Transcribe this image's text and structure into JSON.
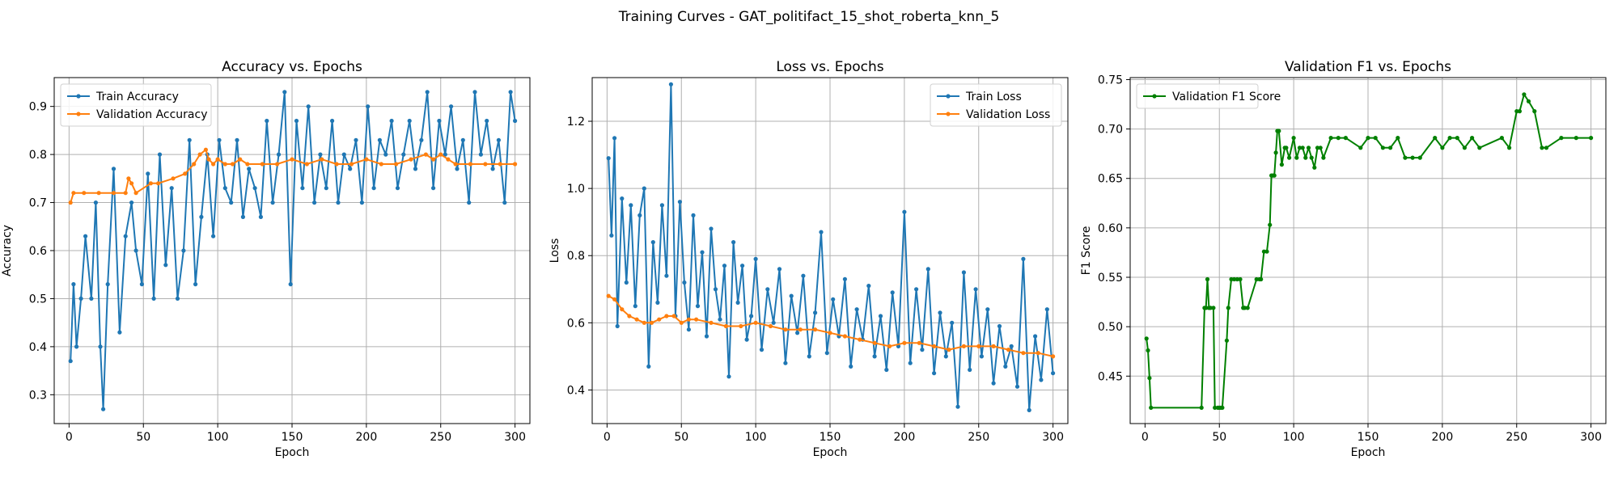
{
  "figure_title": "Training Curves - GAT_politifact_15_shot_roberta_knn_5",
  "chart_data": [
    {
      "type": "line",
      "title": "Accuracy vs. Epochs",
      "xlabel": "Epoch",
      "ylabel": "Accuracy",
      "xlim": [
        -10,
        310
      ],
      "ylim": [
        0.24,
        0.96
      ],
      "xticks": [
        0,
        50,
        100,
        150,
        200,
        250,
        300
      ],
      "yticks": [
        0.3,
        0.4,
        0.5,
        0.6,
        0.7,
        0.8,
        0.9
      ],
      "grid": true,
      "legend_position": "upper-left",
      "series": [
        {
          "name": "Train Accuracy",
          "color": "#1f77b4",
          "x": [
            1,
            3,
            5,
            8,
            11,
            15,
            18,
            21,
            23,
            26,
            30,
            34,
            38,
            42,
            45,
            49,
            53,
            57,
            61,
            65,
            69,
            73,
            77,
            81,
            85,
            89,
            93,
            97,
            101,
            105,
            109,
            113,
            117,
            121,
            125,
            129,
            133,
            137,
            141,
            145,
            149,
            153,
            157,
            161,
            165,
            169,
            173,
            177,
            181,
            185,
            189,
            193,
            197,
            201,
            205,
            209,
            213,
            217,
            221,
            225,
            229,
            233,
            237,
            241,
            245,
            249,
            253,
            257,
            261,
            265,
            269,
            273,
            277,
            281,
            285,
            289,
            293,
            297,
            300
          ],
          "y": [
            0.37,
            0.53,
            0.4,
            0.5,
            0.63,
            0.5,
            0.7,
            0.4,
            0.27,
            0.53,
            0.77,
            0.43,
            0.63,
            0.7,
            0.6,
            0.53,
            0.76,
            0.5,
            0.8,
            0.57,
            0.73,
            0.5,
            0.6,
            0.83,
            0.53,
            0.67,
            0.8,
            0.63,
            0.83,
            0.73,
            0.7,
            0.83,
            0.67,
            0.77,
            0.73,
            0.67,
            0.87,
            0.7,
            0.8,
            0.93,
            0.53,
            0.87,
            0.73,
            0.9,
            0.7,
            0.8,
            0.73,
            0.87,
            0.7,
            0.8,
            0.77,
            0.83,
            0.7,
            0.9,
            0.73,
            0.83,
            0.8,
            0.87,
            0.73,
            0.8,
            0.87,
            0.77,
            0.83,
            0.93,
            0.73,
            0.87,
            0.8,
            0.9,
            0.77,
            0.83,
            0.7,
            0.93,
            0.8,
            0.87,
            0.77,
            0.83,
            0.7,
            0.93,
            0.87
          ]
        },
        {
          "name": "Validation Accuracy",
          "color": "#ff7f0e",
          "x": [
            1,
            3,
            10,
            20,
            30,
            38,
            40,
            42,
            45,
            55,
            60,
            70,
            78,
            84,
            88,
            92,
            94,
            97,
            100,
            105,
            110,
            115,
            120,
            130,
            140,
            150,
            160,
            170,
            180,
            190,
            200,
            210,
            220,
            230,
            240,
            245,
            250,
            255,
            260,
            270,
            280,
            290,
            300
          ],
          "y": [
            0.7,
            0.72,
            0.72,
            0.72,
            0.72,
            0.72,
            0.75,
            0.74,
            0.72,
            0.74,
            0.74,
            0.75,
            0.76,
            0.78,
            0.8,
            0.81,
            0.79,
            0.78,
            0.79,
            0.78,
            0.78,
            0.79,
            0.78,
            0.78,
            0.78,
            0.79,
            0.78,
            0.79,
            0.78,
            0.78,
            0.79,
            0.78,
            0.78,
            0.79,
            0.8,
            0.79,
            0.8,
            0.79,
            0.78,
            0.78,
            0.78,
            0.78,
            0.78
          ]
        }
      ]
    },
    {
      "type": "line",
      "title": "Loss vs. Epochs",
      "xlabel": "Epoch",
      "ylabel": "Loss",
      "xlim": [
        -10,
        310
      ],
      "ylim": [
        0.3,
        1.33
      ],
      "xticks": [
        0,
        50,
        100,
        150,
        200,
        250,
        300
      ],
      "yticks": [
        0.4,
        0.6,
        0.8,
        1.0,
        1.2
      ],
      "grid": true,
      "legend_position": "upper-right",
      "series": [
        {
          "name": "Train Loss",
          "color": "#1f77b4",
          "x": [
            1,
            3,
            5,
            7,
            10,
            13,
            16,
            19,
            22,
            25,
            28,
            31,
            34,
            37,
            40,
            43,
            46,
            49,
            52,
            55,
            58,
            61,
            64,
            67,
            70,
            73,
            76,
            79,
            82,
            85,
            88,
            91,
            94,
            97,
            100,
            104,
            108,
            112,
            116,
            120,
            124,
            128,
            132,
            136,
            140,
            144,
            148,
            152,
            156,
            160,
            164,
            168,
            172,
            176,
            180,
            184,
            188,
            192,
            196,
            200,
            204,
            208,
            212,
            216,
            220,
            224,
            228,
            232,
            236,
            240,
            244,
            248,
            252,
            256,
            260,
            264,
            268,
            272,
            276,
            280,
            284,
            288,
            292,
            296,
            300
          ],
          "y": [
            1.09,
            0.86,
            1.15,
            0.59,
            0.97,
            0.72,
            0.95,
            0.65,
            0.92,
            1.0,
            0.47,
            0.84,
            0.66,
            0.95,
            0.74,
            1.31,
            0.62,
            0.96,
            0.72,
            0.58,
            0.92,
            0.65,
            0.81,
            0.56,
            0.88,
            0.7,
            0.61,
            0.77,
            0.44,
            0.84,
            0.66,
            0.77,
            0.55,
            0.62,
            0.79,
            0.52,
            0.7,
            0.6,
            0.76,
            0.48,
            0.68,
            0.57,
            0.74,
            0.5,
            0.63,
            0.87,
            0.51,
            0.67,
            0.56,
            0.73,
            0.47,
            0.64,
            0.55,
            0.71,
            0.5,
            0.62,
            0.46,
            0.69,
            0.53,
            0.93,
            0.48,
            0.7,
            0.52,
            0.76,
            0.45,
            0.63,
            0.5,
            0.6,
            0.35,
            0.75,
            0.46,
            0.7,
            0.5,
            0.64,
            0.42,
            0.59,
            0.47,
            0.53,
            0.41,
            0.79,
            0.34,
            0.56,
            0.43,
            0.64,
            0.45
          ]
        },
        {
          "name": "Validation Loss",
          "color": "#ff7f0e",
          "x": [
            1,
            5,
            10,
            15,
            20,
            25,
            30,
            35,
            40,
            45,
            50,
            55,
            60,
            70,
            80,
            90,
            100,
            110,
            120,
            130,
            140,
            150,
            160,
            170,
            180,
            190,
            200,
            210,
            220,
            230,
            240,
            250,
            260,
            270,
            280,
            290,
            300
          ],
          "y": [
            0.68,
            0.67,
            0.64,
            0.62,
            0.61,
            0.6,
            0.6,
            0.61,
            0.62,
            0.62,
            0.6,
            0.61,
            0.61,
            0.6,
            0.59,
            0.59,
            0.6,
            0.59,
            0.58,
            0.58,
            0.58,
            0.57,
            0.56,
            0.55,
            0.54,
            0.53,
            0.54,
            0.54,
            0.53,
            0.52,
            0.53,
            0.53,
            0.53,
            0.52,
            0.51,
            0.51,
            0.5
          ]
        }
      ]
    },
    {
      "type": "line",
      "title": "Validation F1 vs. Epochs",
      "xlabel": "Epoch",
      "ylabel": "F1 Score",
      "xlim": [
        -10,
        310
      ],
      "ylim": [
        0.402,
        0.752
      ],
      "xticks": [
        0,
        50,
        100,
        150,
        200,
        250,
        300
      ],
      "yticks": [
        0.45,
        0.5,
        0.55,
        0.6,
        0.65,
        0.7,
        0.75
      ],
      "grid": true,
      "legend_position": "upper-left",
      "series": [
        {
          "name": "Validation F1 Score",
          "color": "#008000",
          "x": [
            1,
            2,
            3,
            4,
            38,
            40,
            41,
            42,
            43,
            44,
            46,
            47,
            49,
            50,
            51,
            52,
            55,
            56,
            58,
            60,
            62,
            64,
            66,
            67,
            69,
            75,
            77,
            78,
            80,
            82,
            84,
            85,
            86,
            87,
            88,
            89,
            90,
            92,
            94,
            95,
            97,
            100,
            102,
            104,
            106,
            108,
            110,
            112,
            114,
            116,
            118,
            120,
            125,
            130,
            135,
            145,
            150,
            155,
            160,
            165,
            170,
            175,
            180,
            185,
            195,
            200,
            205,
            210,
            215,
            220,
            225,
            240,
            245,
            250,
            252,
            255,
            258,
            262,
            267,
            270,
            280,
            290,
            300
          ],
          "y": [
            0.488,
            0.476,
            0.448,
            0.418,
            0.418,
            0.519,
            0.519,
            0.548,
            0.519,
            0.519,
            0.519,
            0.418,
            0.418,
            0.418,
            0.418,
            0.418,
            0.486,
            0.519,
            0.548,
            0.548,
            0.548,
            0.548,
            0.519,
            0.519,
            0.519,
            0.548,
            0.548,
            0.548,
            0.576,
            0.576,
            0.603,
            0.653,
            0.653,
            0.653,
            0.676,
            0.698,
            0.698,
            0.664,
            0.681,
            0.681,
            0.671,
            0.691,
            0.671,
            0.681,
            0.681,
            0.671,
            0.681,
            0.671,
            0.661,
            0.681,
            0.681,
            0.671,
            0.691,
            0.691,
            0.691,
            0.681,
            0.691,
            0.691,
            0.681,
            0.681,
            0.691,
            0.671,
            0.671,
            0.671,
            0.691,
            0.681,
            0.691,
            0.691,
            0.681,
            0.691,
            0.681,
            0.691,
            0.681,
            0.718,
            0.718,
            0.735,
            0.728,
            0.718,
            0.681,
            0.681,
            0.691,
            0.691,
            0.691
          ]
        }
      ]
    }
  ]
}
